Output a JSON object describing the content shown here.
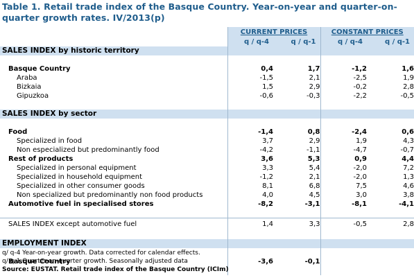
{
  "title": "Table 1. Retail trade index of the Basque Country. Year-on-year and quarter-on-quarter growth rates. IV/2013(p)",
  "header": {
    "current": "CURRENT PRICES",
    "constant": "CONSTANT PRICES",
    "yoy": "q / q-4",
    "qoq": "q / q-1"
  },
  "sections": {
    "territory": "SALES INDEX by historic territory",
    "sector": "SALES INDEX by sector",
    "employment": "EMPLOYMENT INDEX"
  },
  "rows": [
    {
      "label": "Basque Country",
      "v": [
        "0,4",
        "1,7",
        "-1,2",
        "1,6"
      ]
    },
    {
      "label": "Araba",
      "v": [
        "-1,5",
        "2,1",
        "-2,5",
        "1,9"
      ]
    },
    {
      "label": "Bizkaia",
      "v": [
        "1,5",
        "2,9",
        "-0,2",
        "2,8"
      ]
    },
    {
      "label": "Gipuzkoa",
      "v": [
        "-0,6",
        "-0,3",
        "-2,2",
        "-0,5"
      ]
    },
    {
      "label": "Food",
      "v": [
        "-1,4",
        "0,8",
        "-2,4",
        "0,6"
      ]
    },
    {
      "label": "Specialized in food",
      "v": [
        "3,7",
        "2,9",
        "1,9",
        "4,3"
      ]
    },
    {
      "label": "Non especialized but predominantly food",
      "v": [
        "-4,2",
        "-1,1",
        "-4,7",
        "-0,7"
      ]
    },
    {
      "label": "Rest of products",
      "v": [
        "3,6",
        "5,3",
        "0,9",
        "4,4"
      ]
    },
    {
      "label": "Specialized in personal equipment",
      "v": [
        "3,3",
        "5,4",
        "-2,0",
        "7,2"
      ]
    },
    {
      "label": "Specialized in household equipment",
      "v": [
        "-1,2",
        "2,1",
        "-2,0",
        "1,3"
      ]
    },
    {
      "label": "Specialized in other consumer goods",
      "v": [
        "8,1",
        "6,8",
        "7,5",
        "4,6"
      ]
    },
    {
      "label": "Non specialized but predominantly non food products",
      "v": [
        "4,0",
        "4,5",
        "3,0",
        "3,8"
      ]
    },
    {
      "label": "Automotive fuel in specialised stores",
      "v": [
        "-8,2",
        "-3,1",
        "-8,1",
        "-4,1"
      ]
    },
    {
      "label": "SALES INDEX except automotive fuel",
      "v": [
        "1,4",
        "3,3",
        "-0,5",
        "2,8"
      ]
    },
    {
      "label": "Basque Country",
      "v": [
        "-3,6",
        "-0,1",
        "",
        ""
      ]
    }
  ],
  "notes": {
    "n1": "q/ q-4 Year-on-year growth. Data corrected for calendar effects.",
    "n2": "q/ q-1 Quarter-on-quarter growth. Seasonally adjusted data",
    "source": "Source: EUSTAT. Retail trade index of the Basque Country (ICIm)"
  }
}
